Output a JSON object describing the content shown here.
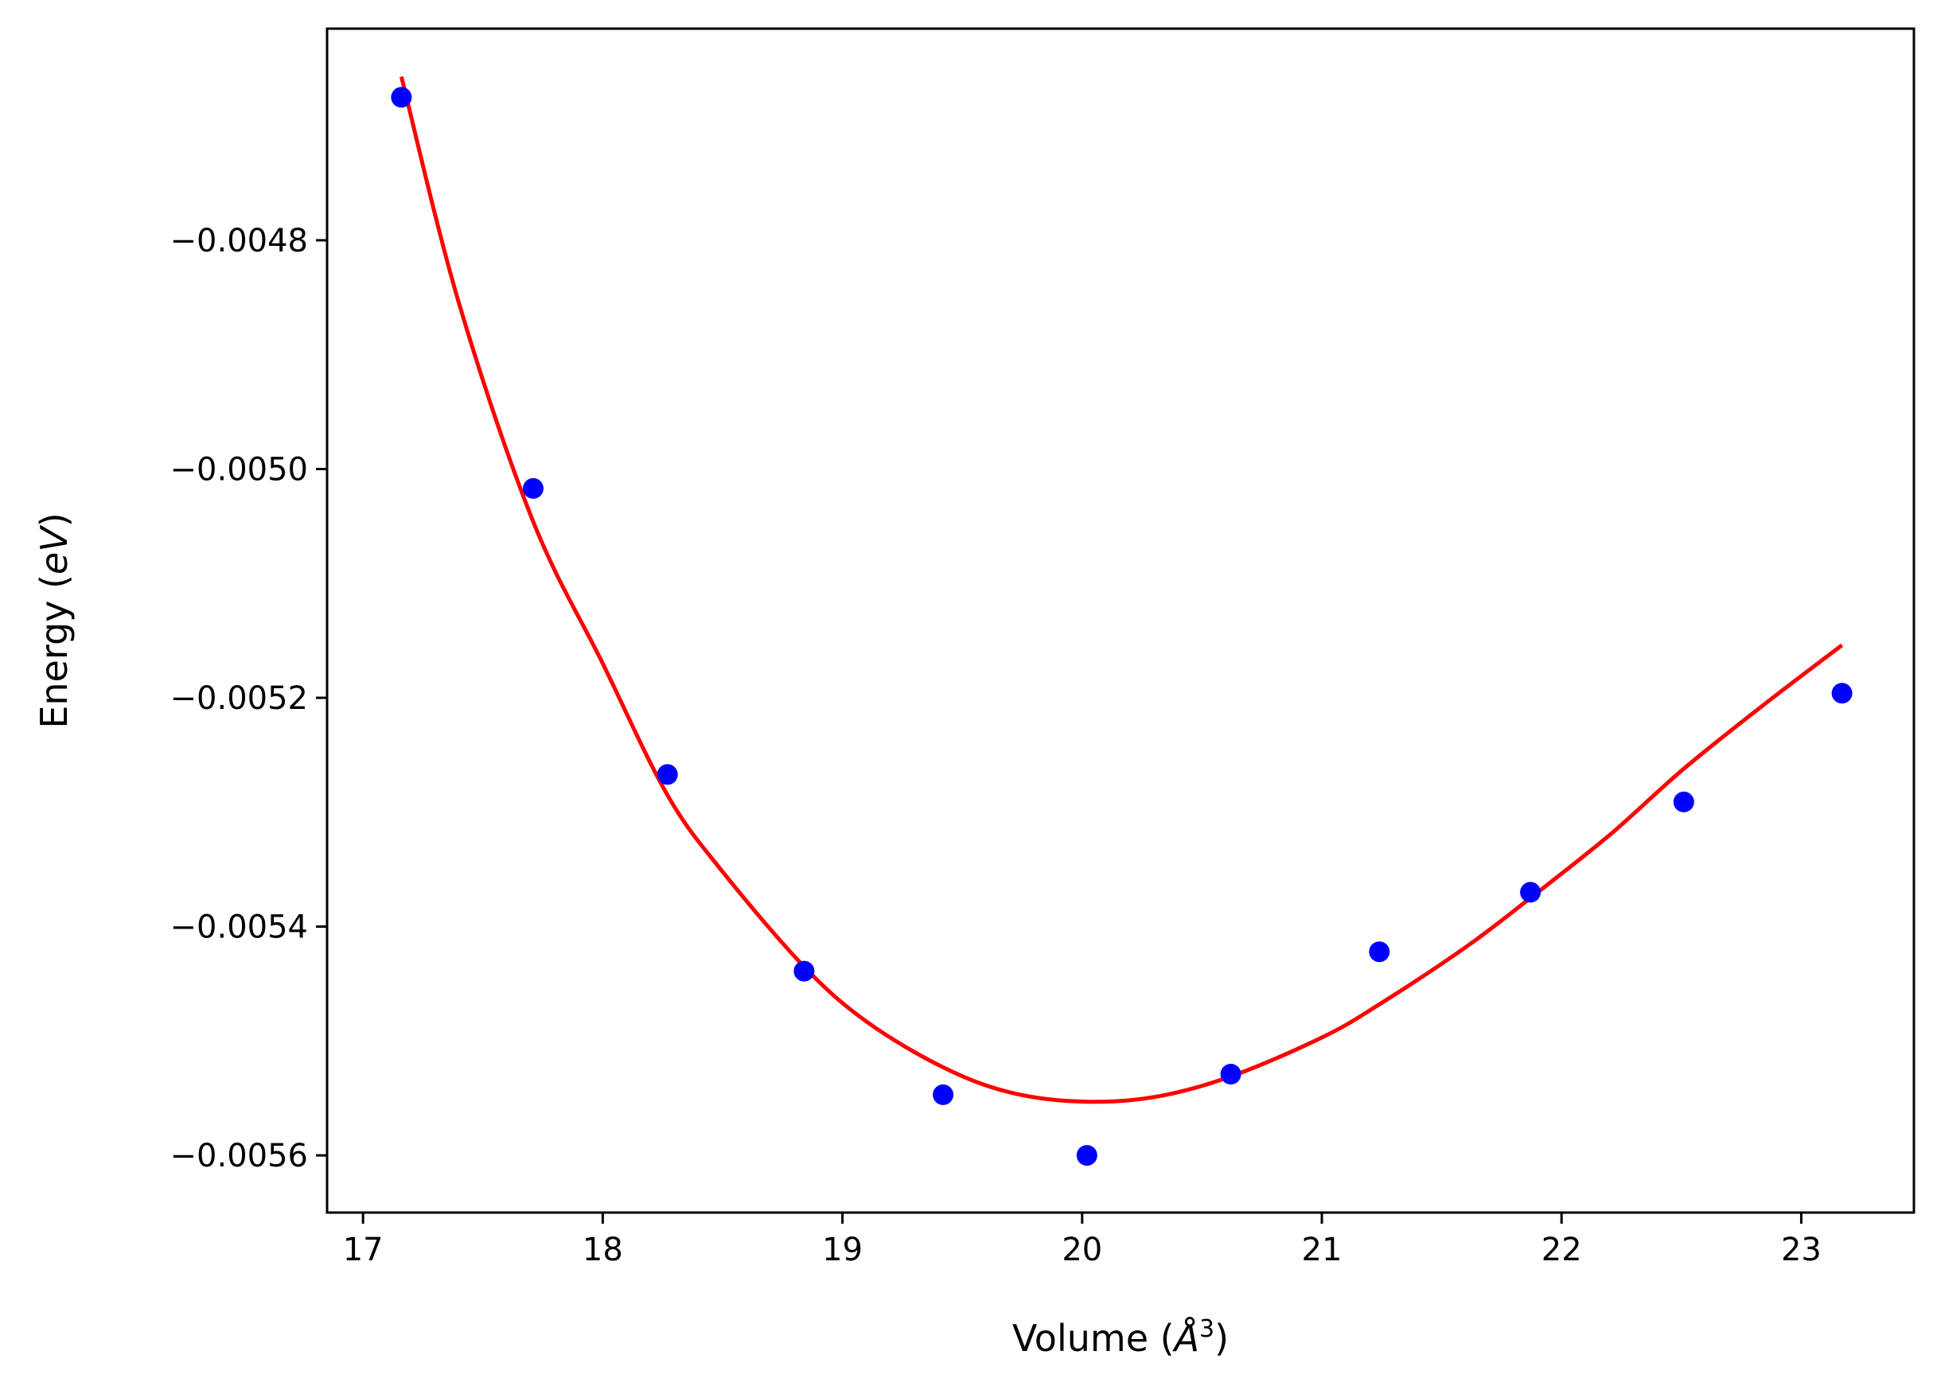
{
  "chart_data": {
    "type": "scatter",
    "xlabel": "Volume (Å³)",
    "ylabel": "Energy (eV)",
    "xlabel_parts": {
      "pre": "Volume (",
      "sym": "Å",
      "sup": "3",
      "post": ")"
    },
    "ylabel_parts": {
      "pre": "Energy (",
      "sym": "eV",
      "post": ")"
    },
    "xlim": [
      16.85,
      23.47
    ],
    "ylim": [
      -0.00565,
      -0.004615
    ],
    "x_ticks": [
      17,
      18,
      19,
      20,
      21,
      22,
      23
    ],
    "x_tick_labels": [
      "17",
      "18",
      "19",
      "20",
      "21",
      "22",
      "23"
    ],
    "y_ticks": [
      -0.0048,
      -0.005,
      -0.0052,
      -0.0054,
      -0.0056
    ],
    "y_tick_labels": [
      "−0.0048",
      "−0.0050",
      "−0.0052",
      "−0.0054",
      "−0.0056"
    ],
    "grid": false,
    "series": [
      {
        "kind": "points",
        "color": "#0000ff",
        "x": [
          17.16,
          17.71,
          18.27,
          18.84,
          19.42,
          20.02,
          20.62,
          21.24,
          21.87,
          22.51,
          23.17
        ],
        "y": [
          -0.004675,
          -0.005017,
          -0.005267,
          -0.005439,
          -0.005547,
          -0.0056,
          -0.005529,
          -0.005422,
          -0.00537,
          -0.005291,
          -0.005196
        ]
      },
      {
        "kind": "fit",
        "color": "#ff0000",
        "x": [
          17.16,
          17.4,
          17.71,
          18.0,
          18.27,
          18.5,
          18.84,
          19.1,
          19.42,
          19.7,
          20.0,
          20.3,
          20.62,
          21.0,
          21.24,
          21.6,
          21.87,
          22.2,
          22.51,
          22.85,
          23.17
        ],
        "y": [
          -0.004657,
          -0.004855,
          -0.005046,
          -0.00517,
          -0.005285,
          -0.005352,
          -0.005435,
          -0.005483,
          -0.005523,
          -0.005545,
          -0.005553,
          -0.005549,
          -0.005531,
          -0.005497,
          -0.005468,
          -0.005418,
          -0.005375,
          -0.00532,
          -0.005262,
          -0.005205,
          -0.005154
        ]
      }
    ]
  }
}
